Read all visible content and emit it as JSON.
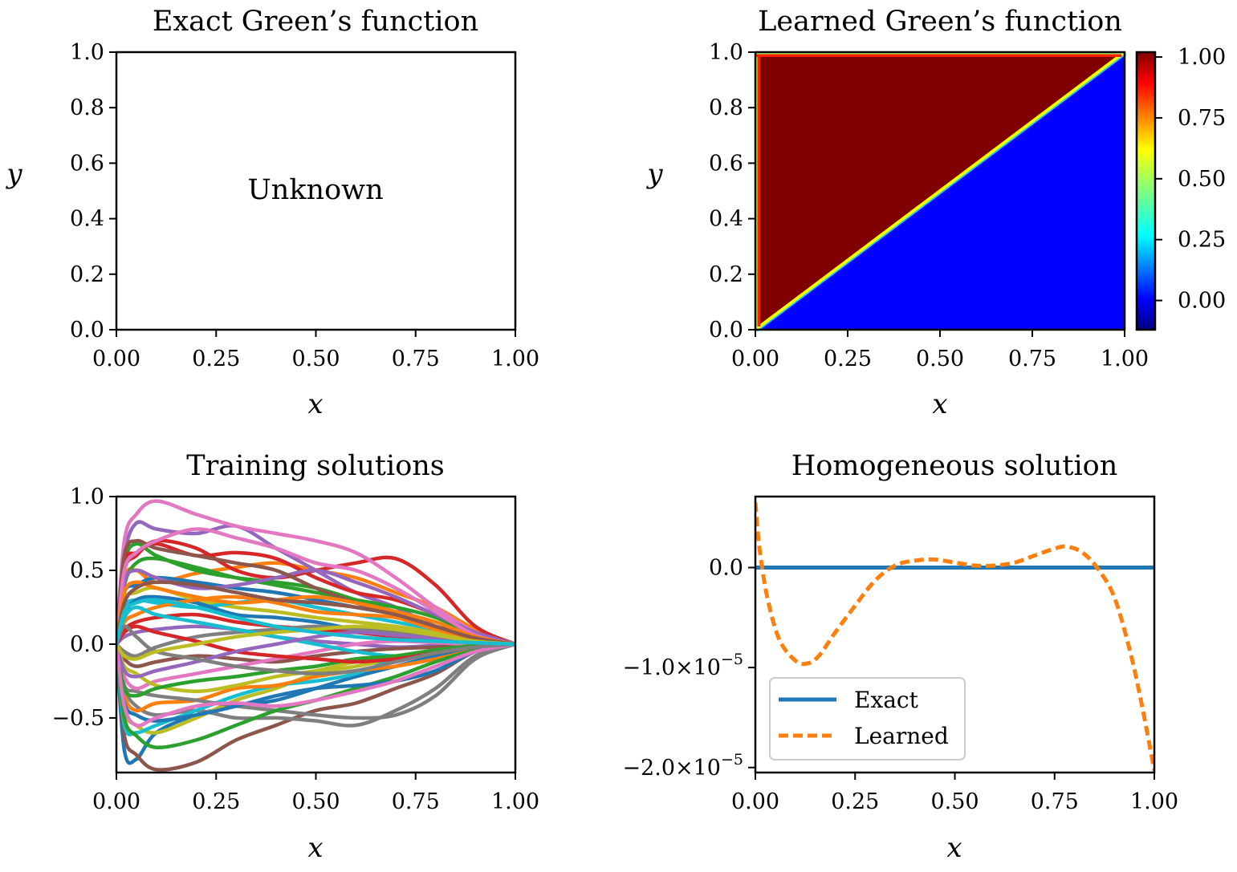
{
  "chart_data": [
    {
      "type": "table",
      "title": "Exact Green’s function",
      "xlabel": "x",
      "ylabel": "y",
      "xlim": [
        0,
        1
      ],
      "ylim": [
        0,
        1
      ],
      "x_ticks": [
        "0.00",
        "0.25",
        "0.50",
        "0.75",
        "1.00"
      ],
      "y_ticks": [
        "0.0",
        "0.2",
        "0.4",
        "0.6",
        "0.8",
        "1.0"
      ],
      "annotation": "Unknown"
    },
    {
      "type": "heatmap",
      "title": "Learned Green’s function",
      "xlabel": "x",
      "ylabel": "y",
      "xlim": [
        0,
        1
      ],
      "ylim": [
        0,
        1
      ],
      "x_ticks": [
        "0.00",
        "0.25",
        "0.50",
        "0.75",
        "1.00"
      ],
      "y_ticks": [
        "0.0",
        "0.2",
        "0.4",
        "0.6",
        "0.8",
        "1.0"
      ],
      "regions": [
        {
          "where": "y > x",
          "value": 1.0
        },
        {
          "where": "y < x",
          "value": 0.0
        }
      ],
      "colorbar": {
        "colormap": "jet",
        "range": [
          -0.12,
          1.02
        ],
        "ticks": [
          1.0,
          0.75,
          0.5,
          0.25,
          0.0
        ],
        "tick_labels": [
          "1.00",
          "0.75",
          "0.50",
          "0.25",
          "0.00"
        ]
      }
    },
    {
      "type": "line",
      "title": "Training solutions",
      "xlabel": "x",
      "ylabel": "",
      "xlim": [
        0,
        1
      ],
      "ylim": [
        -0.87,
        1.0
      ],
      "x_ticks": [
        "0.00",
        "0.25",
        "0.50",
        "0.75",
        "1.00"
      ],
      "y_ticks": [
        "−0.5",
        "0.0",
        "0.5",
        "1.0"
      ],
      "colors": [
        "#1f77b4",
        "#ff7f0e",
        "#2ca02c",
        "#d62728",
        "#9467bd",
        "#8c564b",
        "#e377c2",
        "#7f7f7f",
        "#bcbd22",
        "#17becf"
      ],
      "x": [
        0,
        0.02,
        0.05,
        0.1,
        0.2,
        0.3,
        0.4,
        0.5,
        0.6,
        0.7,
        0.8,
        0.9,
        1.0
      ],
      "series": [
        {
          "values": [
            0,
            -0.72,
            -0.78,
            -0.6,
            -0.48,
            -0.42,
            -0.38,
            -0.3,
            -0.22,
            -0.15,
            -0.08,
            -0.02,
            0
          ]
        },
        {
          "values": [
            0,
            0.45,
            0.5,
            0.42,
            0.48,
            0.52,
            0.55,
            0.5,
            0.45,
            0.35,
            0.25,
            0.1,
            0
          ]
        },
        {
          "values": [
            0,
            0.55,
            0.68,
            0.6,
            0.5,
            0.45,
            0.42,
            0.38,
            0.3,
            0.22,
            0.15,
            0.05,
            0
          ]
        },
        {
          "values": [
            0,
            0.5,
            0.6,
            0.7,
            0.65,
            0.5,
            0.45,
            0.5,
            0.55,
            0.58,
            0.4,
            0.12,
            0
          ]
        },
        {
          "values": [
            0,
            0.6,
            0.82,
            0.78,
            0.75,
            0.8,
            0.65,
            0.5,
            0.35,
            0.25,
            0.12,
            0.05,
            0
          ]
        },
        {
          "values": [
            0,
            -0.62,
            -0.75,
            -0.85,
            -0.8,
            -0.65,
            -0.55,
            -0.45,
            -0.4,
            -0.3,
            -0.2,
            -0.05,
            0
          ]
        },
        {
          "values": [
            0,
            0.7,
            0.88,
            0.97,
            0.88,
            0.8,
            0.75,
            0.7,
            0.62,
            0.45,
            0.25,
            0.08,
            0
          ]
        },
        {
          "values": [
            0,
            -0.3,
            -0.42,
            -0.48,
            -0.45,
            -0.5,
            -0.5,
            -0.52,
            -0.55,
            -0.45,
            -0.3,
            -0.08,
            0
          ]
        },
        {
          "values": [
            0,
            -0.45,
            -0.55,
            -0.6,
            -0.5,
            -0.38,
            -0.3,
            -0.2,
            -0.15,
            -0.1,
            -0.05,
            -0.02,
            0
          ]
        },
        {
          "values": [
            0,
            -0.55,
            -0.6,
            -0.55,
            -0.45,
            -0.35,
            -0.28,
            -0.25,
            -0.2,
            -0.1,
            -0.05,
            0.0,
            0
          ]
        },
        {
          "values": [
            0,
            0.35,
            0.4,
            0.45,
            0.42,
            0.38,
            0.35,
            0.3,
            0.25,
            0.2,
            0.12,
            0.05,
            0
          ]
        },
        {
          "values": [
            0,
            -0.35,
            -0.45,
            -0.4,
            -0.38,
            -0.3,
            -0.28,
            -0.22,
            -0.18,
            -0.15,
            -0.1,
            -0.04,
            0
          ]
        },
        {
          "values": [
            0,
            0.4,
            0.55,
            0.58,
            0.52,
            0.45,
            0.4,
            0.35,
            0.3,
            0.25,
            0.18,
            0.06,
            0
          ]
        },
        {
          "values": [
            0,
            0.55,
            0.62,
            0.68,
            0.6,
            0.62,
            0.58,
            0.45,
            0.35,
            0.3,
            0.2,
            0.07,
            0
          ]
        },
        {
          "values": [
            0,
            0.42,
            0.5,
            0.45,
            0.38,
            0.4,
            0.45,
            0.5,
            0.42,
            0.32,
            0.2,
            0.08,
            0
          ]
        },
        {
          "values": [
            0,
            0.6,
            0.7,
            0.65,
            0.6,
            0.55,
            0.5,
            0.38,
            0.28,
            0.2,
            0.12,
            0.05,
            0
          ]
        },
        {
          "values": [
            0,
            0.5,
            0.62,
            0.7,
            0.78,
            0.72,
            0.65,
            0.55,
            0.5,
            0.38,
            0.22,
            0.06,
            0
          ]
        },
        {
          "values": [
            0,
            -0.28,
            -0.32,
            -0.35,
            -0.38,
            -0.42,
            -0.45,
            -0.48,
            -0.5,
            -0.48,
            -0.35,
            -0.1,
            0
          ]
        },
        {
          "values": [
            0,
            0.3,
            0.35,
            0.38,
            0.3,
            0.25,
            0.22,
            0.18,
            0.15,
            0.12,
            0.08,
            0.03,
            0
          ]
        },
        {
          "values": [
            0,
            0.25,
            0.3,
            0.28,
            0.25,
            0.28,
            0.3,
            0.25,
            0.2,
            0.15,
            0.1,
            0.04,
            0
          ]
        },
        {
          "values": [
            0,
            0.2,
            0.3,
            0.32,
            0.28,
            0.2,
            0.18,
            0.15,
            0.1,
            0.08,
            0.05,
            0.02,
            0
          ]
        },
        {
          "values": [
            0,
            0.15,
            0.2,
            0.25,
            0.3,
            0.32,
            0.28,
            0.22,
            0.2,
            0.18,
            0.1,
            0.04,
            0
          ]
        },
        {
          "values": [
            0,
            -0.5,
            -0.62,
            -0.7,
            -0.65,
            -0.55,
            -0.45,
            -0.38,
            -0.3,
            -0.22,
            -0.12,
            -0.04,
            0
          ]
        },
        {
          "values": [
            0,
            0.1,
            0.15,
            0.18,
            0.2,
            0.15,
            0.12,
            0.1,
            0.08,
            0.05,
            0.03,
            0.01,
            0
          ]
        },
        {
          "values": [
            0,
            0.05,
            0.08,
            0.1,
            0.12,
            0.1,
            0.05,
            0.02,
            0.0,
            -0.02,
            -0.01,
            0.0,
            0
          ]
        },
        {
          "values": [
            0,
            -0.1,
            -0.15,
            -0.12,
            -0.08,
            -0.1,
            -0.12,
            -0.08,
            -0.05,
            -0.03,
            -0.02,
            0.0,
            0
          ]
        },
        {
          "values": [
            0,
            -0.22,
            -0.3,
            -0.25,
            -0.2,
            -0.15,
            -0.1,
            -0.05,
            0.0,
            0.02,
            0.01,
            0.0,
            0
          ]
        },
        {
          "values": [
            0,
            -0.05,
            -0.08,
            -0.02,
            0.05,
            0.08,
            0.1,
            0.12,
            0.1,
            0.08,
            0.05,
            0.02,
            0
          ]
        },
        {
          "values": [
            0,
            -0.15,
            -0.2,
            -0.28,
            -0.32,
            -0.28,
            -0.22,
            -0.18,
            -0.12,
            -0.08,
            -0.04,
            -0.01,
            0
          ]
        },
        {
          "values": [
            0,
            0.18,
            0.25,
            0.2,
            0.15,
            0.1,
            0.05,
            0.0,
            -0.05,
            -0.08,
            -0.05,
            -0.02,
            0
          ]
        },
        {
          "values": [
            0,
            -0.4,
            -0.48,
            -0.52,
            -0.48,
            -0.42,
            -0.35,
            -0.3,
            -0.28,
            -0.25,
            -0.18,
            -0.05,
            0
          ]
        },
        {
          "values": [
            0,
            0.35,
            0.42,
            0.38,
            0.32,
            0.28,
            0.3,
            0.32,
            0.28,
            0.22,
            0.15,
            0.05,
            0
          ]
        },
        {
          "values": [
            0,
            -0.3,
            -0.35,
            -0.3,
            -0.25,
            -0.22,
            -0.18,
            -0.15,
            -0.1,
            -0.08,
            -0.04,
            -0.01,
            0
          ]
        },
        {
          "values": [
            0,
            0.08,
            0.12,
            0.08,
            0.02,
            -0.05,
            -0.08,
            -0.1,
            -0.12,
            -0.1,
            -0.06,
            -0.02,
            0
          ]
        },
        {
          "values": [
            0,
            -0.18,
            -0.22,
            -0.18,
            -0.12,
            -0.05,
            0.0,
            0.05,
            0.08,
            0.06,
            0.04,
            0.01,
            0
          ]
        },
        {
          "values": [
            0,
            0.28,
            0.38,
            0.42,
            0.4,
            0.35,
            0.3,
            0.28,
            0.25,
            0.2,
            0.12,
            0.04,
            0
          ]
        },
        {
          "values": [
            0,
            -0.42,
            -0.55,
            -0.5,
            -0.42,
            -0.4,
            -0.42,
            -0.38,
            -0.32,
            -0.25,
            -0.15,
            -0.05,
            0
          ]
        },
        {
          "values": [
            0,
            0.12,
            0.05,
            -0.05,
            -0.1,
            -0.15,
            -0.18,
            -0.2,
            -0.18,
            -0.12,
            -0.06,
            -0.02,
            0
          ]
        },
        {
          "values": [
            0,
            -0.08,
            -0.1,
            -0.05,
            0.0,
            0.05,
            0.08,
            0.1,
            0.12,
            0.1,
            0.06,
            0.02,
            0
          ]
        },
        {
          "values": [
            0,
            0.22,
            0.28,
            0.3,
            0.25,
            0.18,
            0.12,
            0.08,
            0.05,
            0.03,
            0.02,
            0.01,
            0
          ]
        }
      ]
    },
    {
      "type": "line",
      "title": "Homogeneous solution",
      "xlabel": "x",
      "ylabel": "",
      "xlim": [
        0,
        1
      ],
      "ylim": [
        -2.05e-05,
        7.1e-06
      ],
      "x_ticks": [
        "0.00",
        "0.25",
        "0.50",
        "0.75",
        "1.00"
      ],
      "y_tick_values": [
        0,
        -1e-05,
        -2e-05
      ],
      "y_tick_labels": [
        {
          "mantissa": "0.0",
          "power": ""
        },
        {
          "mantissa": "−1.0×10",
          "power": "−5"
        },
        {
          "mantissa": "−2.0×10",
          "power": "−5"
        }
      ],
      "legend": {
        "position": "lower-left",
        "entries": [
          "Exact",
          "Learned"
        ]
      },
      "x": [
        0,
        0.01,
        0.03,
        0.06,
        0.1,
        0.13,
        0.16,
        0.2,
        0.25,
        0.3,
        0.35,
        0.4,
        0.45,
        0.5,
        0.55,
        0.6,
        0.65,
        0.7,
        0.75,
        0.78,
        0.82,
        0.86,
        0.9,
        0.94,
        0.97,
        1.0
      ],
      "series": [
        {
          "name": "Exact",
          "color": "#1f77b4",
          "dash": "solid",
          "values": [
            0,
            0,
            0,
            0,
            0,
            0,
            0,
            0,
            0,
            0,
            0,
            0,
            0,
            0,
            0,
            0,
            0,
            0,
            0,
            0,
            0,
            0,
            0,
            0,
            0,
            0
          ]
        },
        {
          "name": "Learned",
          "color": "#ff7f0e",
          "dash": "dashed",
          "values": [
            6.5e-06,
            2e-06,
            -3e-06,
            -7.2e-06,
            -9.3e-06,
            -9.6e-06,
            -8.8e-06,
            -6.5e-06,
            -3.8e-06,
            -1.3e-06,
            2e-07,
            7e-07,
            8e-07,
            5e-07,
            2e-07,
            2e-07,
            5e-07,
            1.2e-06,
            1.9e-06,
            2.1e-06,
            1.5e-06,
            -2e-07,
            -3e-06,
            -8.5e-06,
            -1.4e-05,
            -2.03e-05
          ]
        }
      ]
    }
  ]
}
